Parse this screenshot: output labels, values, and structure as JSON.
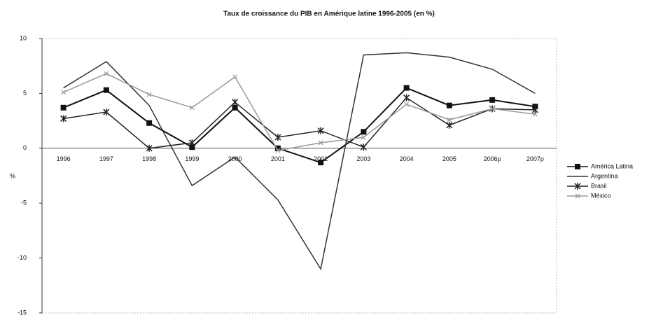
{
  "chart_data": {
    "type": "line",
    "title": "Taux de croissance du PIB en Amérique latine  1996-2005 (en %)",
    "y_label": "%",
    "categories": [
      "1996",
      "1997",
      "1998",
      "1999",
      "2000",
      "2001",
      "2002",
      "2003",
      "2004",
      "2005",
      "2006p",
      "2007p"
    ],
    "series": [
      {
        "name": "América Latina",
        "color": "#111111",
        "marker": "square",
        "values": [
          3.7,
          5.3,
          2.3,
          0.1,
          3.7,
          0.0,
          -1.3,
          1.5,
          5.5,
          3.9,
          4.4,
          3.8
        ]
      },
      {
        "name": "Argentina",
        "color": "#333333",
        "marker": "none",
        "values": [
          5.5,
          7.9,
          3.9,
          -3.4,
          -0.8,
          -4.7,
          -11.0,
          8.5,
          8.7,
          8.3,
          7.2,
          5.0
        ]
      },
      {
        "name": "Brasil",
        "color": "#222222",
        "marker": "star",
        "values": [
          2.7,
          3.3,
          0.0,
          0.5,
          4.2,
          1.0,
          1.6,
          0.1,
          4.6,
          2.1,
          3.6,
          3.5
        ]
      },
      {
        "name": "México",
        "color": "#999999",
        "marker": "x",
        "values": [
          5.1,
          6.8,
          4.9,
          3.7,
          6.5,
          -0.2,
          0.5,
          1.0,
          4.0,
          2.6,
          3.6,
          3.1
        ]
      }
    ],
    "ylim": [
      -15,
      10
    ],
    "yticks": [
      -15,
      -10,
      -5,
      0,
      5,
      10
    ],
    "grid": false,
    "legend": "right"
  }
}
